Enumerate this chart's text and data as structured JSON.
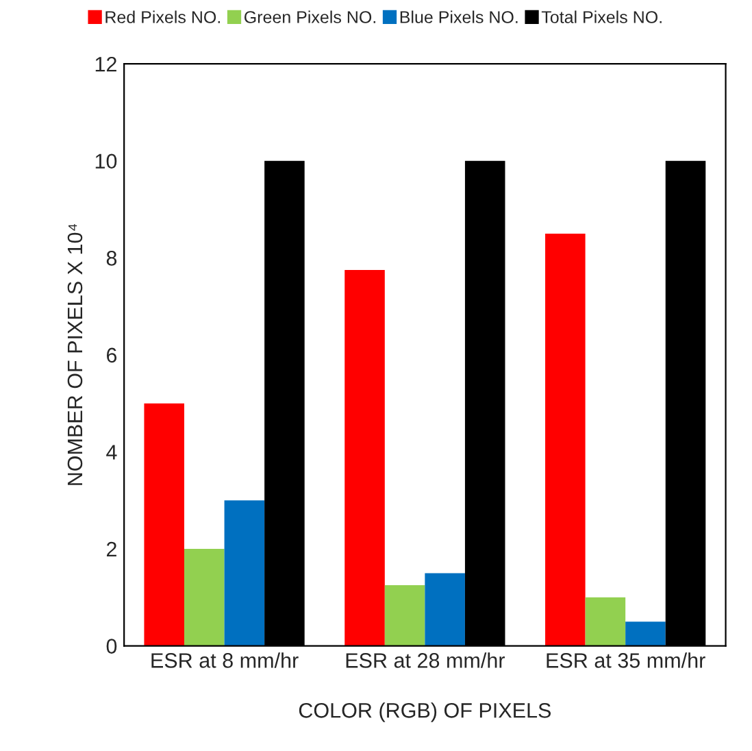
{
  "chart_data": {
    "type": "bar",
    "xlabel": "COLOR (RGB) OF PIXELS",
    "ylabel": "NOMBER OF PIXELS X 10⁴",
    "categories": [
      "ESR at 8 mm/hr",
      "ESR at 28 mm/hr",
      "ESR at 35 mm/hr"
    ],
    "series": [
      {
        "name": "Red Pixels NO.",
        "color": "#ff0000",
        "values": [
          5,
          7.75,
          8.5
        ]
      },
      {
        "name": "Green Pixels NO.",
        "color": "#92d050",
        "values": [
          2,
          1.25,
          1
        ]
      },
      {
        "name": "Blue Pixels NO.",
        "color": "#0070c0",
        "values": [
          3,
          1.5,
          0.5
        ]
      },
      {
        "name": "Total Pixels NO.",
        "color": "#000000",
        "values": [
          10,
          10,
          10
        ]
      }
    ],
    "ylim": [
      0,
      12
    ],
    "yticks": [
      0,
      2,
      4,
      6,
      8,
      10,
      12
    ],
    "grid": false,
    "legend": "top"
  }
}
